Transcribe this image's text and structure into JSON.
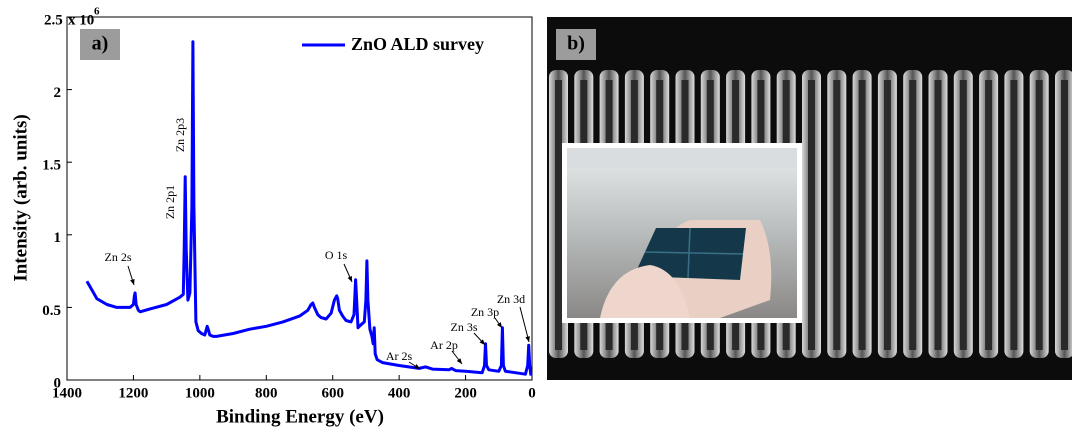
{
  "chart_data": {
    "type": "line",
    "panel_label": "a)",
    "xlabel": "Binding Energy (eV)",
    "ylabel": "Intensity (arb. units)",
    "xlim": [
      1400,
      0
    ],
    "xticks": [
      1400,
      1200,
      1000,
      800,
      600,
      400,
      200,
      0
    ],
    "ylim": [
      0,
      2.5
    ],
    "yticks": [
      0,
      0.5,
      1,
      1.5,
      2,
      2.5
    ],
    "y_multiplier": "x 10",
    "y_multiplier_exponent": 6,
    "grid": false,
    "legend": "upper right",
    "series": [
      {
        "name": "ZnO ALD survey",
        "color": "#0000ff",
        "x": [
          1340,
          1330,
          1310,
          1280,
          1250,
          1210,
          1200,
          1197,
          1195,
          1192,
          1185,
          1180,
          1150,
          1100,
          1060,
          1050,
          1047,
          1044,
          1041,
          1036,
          1030,
          1024,
          1021,
          1018,
          1012,
          1005,
          995,
          985,
          978,
          975,
          970,
          960,
          950,
          900,
          850,
          800,
          750,
          700,
          675,
          665,
          660,
          655,
          645,
          635,
          620,
          605,
          595,
          588,
          585,
          580,
          570,
          560,
          545,
          536,
          533,
          531,
          529,
          524,
          515,
          505,
          500,
          497,
          494,
          488,
          482,
          478,
          475,
          472,
          466,
          450,
          400,
          340,
          320,
          300,
          250,
          242,
          230,
          200,
          150,
          143,
          140,
          137,
          130,
          100,
          92,
          89,
          86,
          80,
          50,
          20,
          13,
          10,
          7,
          3
        ],
        "values": [
          0.68,
          0.64,
          0.56,
          0.52,
          0.5,
          0.5,
          0.52,
          0.58,
          0.6,
          0.52,
          0.48,
          0.47,
          0.49,
          0.52,
          0.57,
          0.59,
          0.9,
          1.4,
          0.9,
          0.55,
          0.6,
          1.2,
          2.33,
          1.2,
          0.4,
          0.34,
          0.32,
          0.31,
          0.37,
          0.35,
          0.31,
          0.3,
          0.3,
          0.32,
          0.35,
          0.37,
          0.4,
          0.44,
          0.48,
          0.52,
          0.53,
          0.5,
          0.45,
          0.43,
          0.42,
          0.46,
          0.55,
          0.58,
          0.56,
          0.48,
          0.44,
          0.41,
          0.4,
          0.45,
          0.6,
          0.69,
          0.6,
          0.36,
          0.38,
          0.4,
          0.55,
          0.82,
          0.55,
          0.35,
          0.3,
          0.25,
          0.36,
          0.18,
          0.14,
          0.12,
          0.1,
          0.08,
          0.09,
          0.075,
          0.07,
          0.08,
          0.065,
          0.06,
          0.05,
          0.1,
          0.25,
          0.1,
          0.07,
          0.06,
          0.1,
          0.36,
          0.1,
          0.06,
          0.05,
          0.04,
          0.1,
          0.24,
          0.1,
          0.03
        ]
      }
    ],
    "annotations": [
      "Zn 2s",
      "Zn 2p1",
      "Zn 2p3",
      "O 1s",
      "Ar 2s",
      "Ar 2p",
      "Zn 3s",
      "Zn 3p",
      "Zn 3d"
    ]
  },
  "image_panel": {
    "label": "b)"
  }
}
